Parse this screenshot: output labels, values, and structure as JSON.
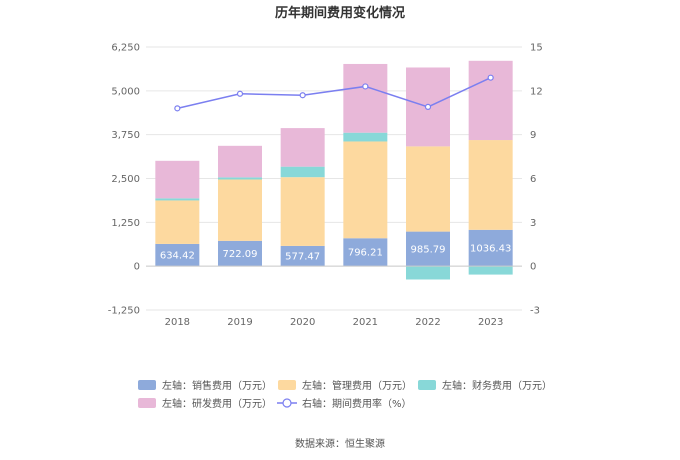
{
  "chart_data": {
    "type": "bar",
    "stacked": true,
    "title": "历年期间费用变化情况",
    "categories": [
      "2018",
      "2019",
      "2020",
      "2021",
      "2022",
      "2023"
    ],
    "left_axis": {
      "min": -1250,
      "max": 6250,
      "ticks": [
        "-1,250",
        "0",
        "1,250",
        "2,500",
        "3,750",
        "5,000",
        "6,250"
      ],
      "tick_values": [
        -1250,
        0,
        1250,
        2500,
        3750,
        5000,
        6250
      ]
    },
    "right_axis": {
      "min": -3,
      "max": 15,
      "ticks": [
        "-3",
        "0",
        "3",
        "6",
        "9",
        "12",
        "15"
      ],
      "tick_values": [
        -3,
        0,
        3,
        6,
        9,
        12,
        15
      ]
    },
    "series": [
      {
        "name": "左轴：销售费用（万元）",
        "axis": "left",
        "kind": "bar",
        "color": "#8eaadb",
        "values": [
          634.42,
          722.09,
          577.47,
          796.21,
          985.79,
          1036.43
        ],
        "labels": [
          "634.42",
          "722.09",
          "577.47",
          "796.21",
          "985.79",
          "1036.43"
        ]
      },
      {
        "name": "左轴：管理费用（万元）",
        "axis": "left",
        "kind": "bar",
        "color": "#fdd99f",
        "values": [
          1240,
          1750,
          1960,
          2760,
          2430,
          2560
        ]
      },
      {
        "name": "左轴：财务费用（万元）",
        "axis": "left",
        "kind": "bar",
        "color": "#88d8d8",
        "values": [
          60,
          60,
          300,
          250,
          -380,
          -240
        ]
      },
      {
        "name": "左轴：研发费用（万元）",
        "axis": "left",
        "kind": "bar",
        "color": "#e8b8d8",
        "values": [
          1070,
          900,
          1100,
          1960,
          2250,
          2260
        ]
      },
      {
        "name": "右轴：期间费用率（%）",
        "axis": "right",
        "kind": "line",
        "color": "#7b7ff0",
        "values": [
          10.8,
          11.8,
          11.7,
          12.3,
          10.9,
          12.9
        ]
      }
    ]
  },
  "source": "数据来源：恒生聚源"
}
